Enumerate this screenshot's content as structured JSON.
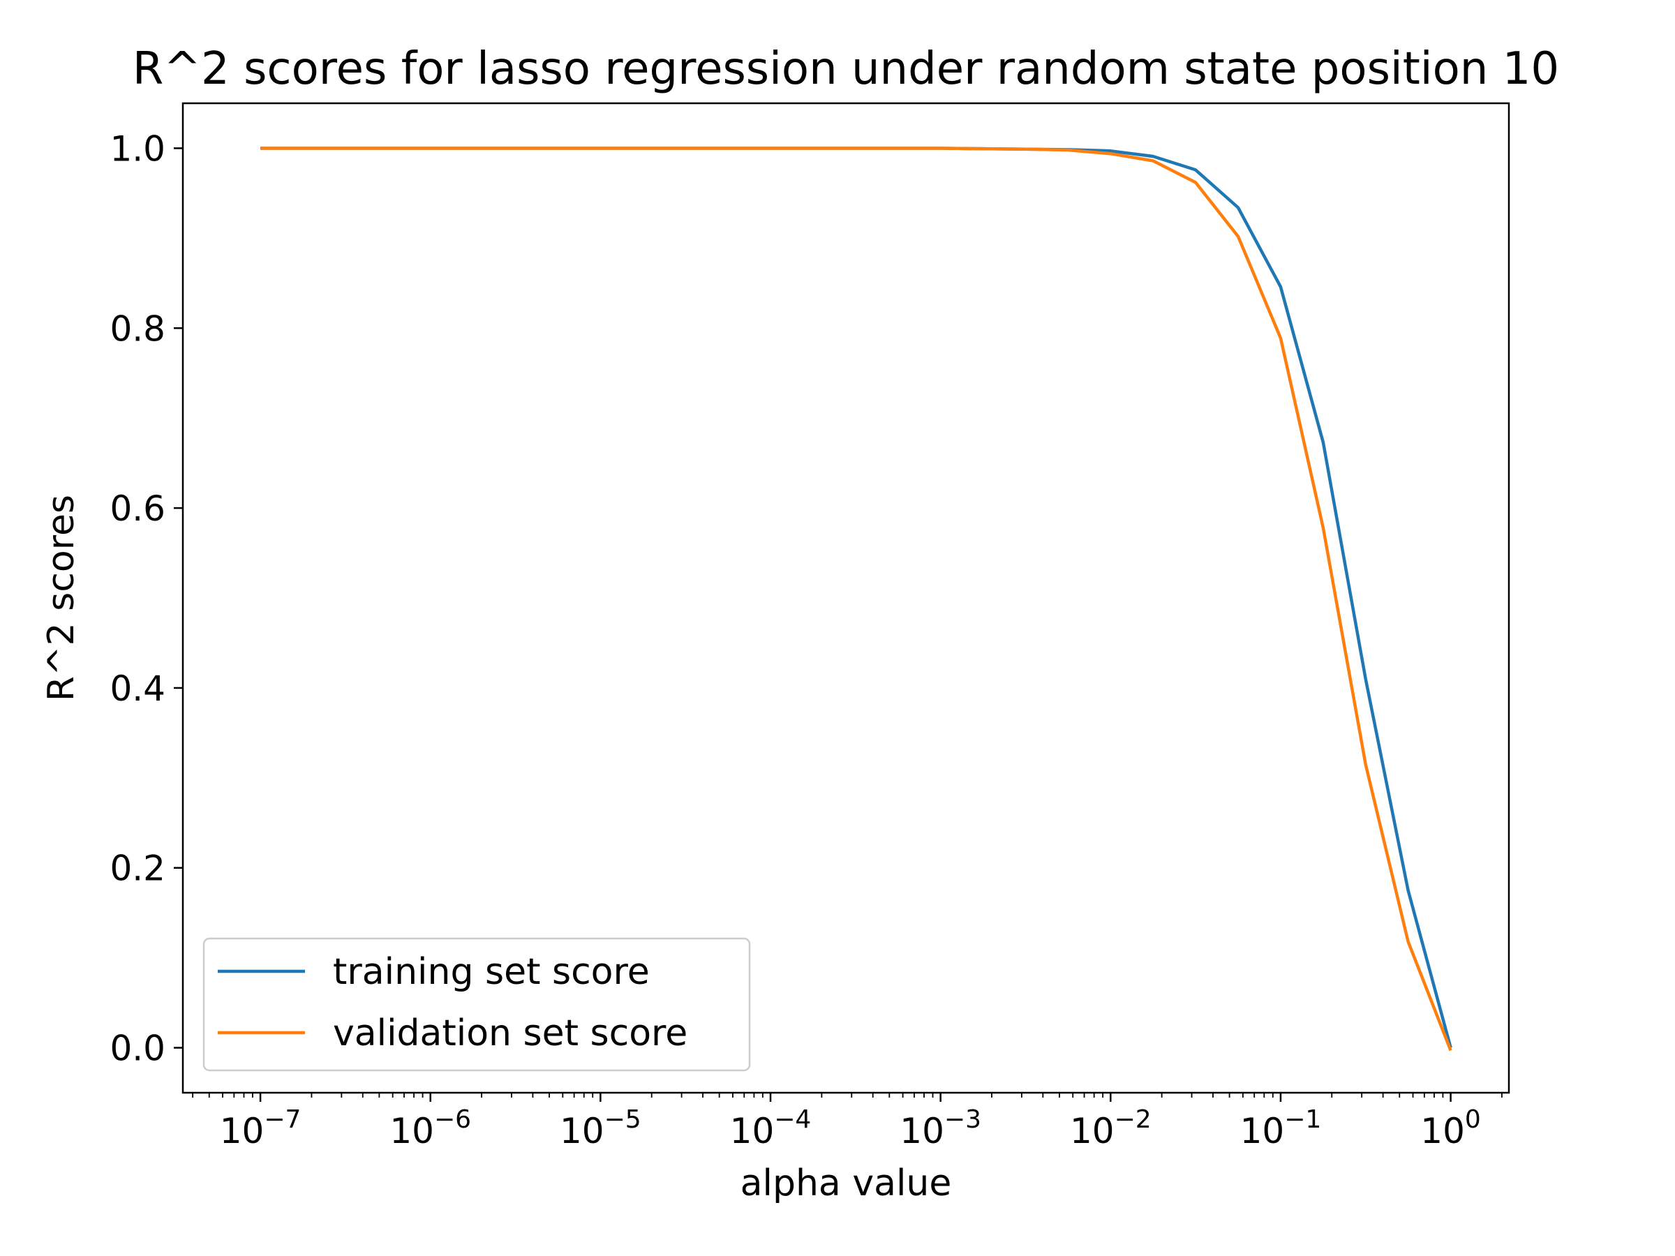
{
  "chart_data": {
    "type": "line",
    "title": "R^2 scores for lasso regression under random state position 10",
    "xlabel": "alpha value",
    "ylabel": "R^2 scores",
    "x_scale": "log",
    "xlim": [
      3.5e-08,
      2.2
    ],
    "ylim": [
      -0.05,
      1.05
    ],
    "x_ticks": [
      {
        "value": 1e-07,
        "base": "10",
        "exp": "−7"
      },
      {
        "value": 1e-06,
        "base": "10",
        "exp": "−6"
      },
      {
        "value": 1e-05,
        "base": "10",
        "exp": "−5"
      },
      {
        "value": 0.0001,
        "base": "10",
        "exp": "−4"
      },
      {
        "value": 0.001,
        "base": "10",
        "exp": "−3"
      },
      {
        "value": 0.01,
        "base": "10",
        "exp": "−2"
      },
      {
        "value": 0.1,
        "base": "10",
        "exp": "−1"
      },
      {
        "value": 1,
        "base": "10",
        "exp": "0"
      }
    ],
    "y_ticks": [
      {
        "value": 0.0,
        "label": "0.0"
      },
      {
        "value": 0.2,
        "label": "0.2"
      },
      {
        "value": 0.4,
        "label": "0.4"
      },
      {
        "value": 0.6,
        "label": "0.6"
      },
      {
        "value": 0.8,
        "label": "0.8"
      },
      {
        "value": 1.0,
        "label": "1.0"
      }
    ],
    "grid": false,
    "legend_position": "lower-left",
    "x": [
      1e-07,
      0.001,
      0.00316,
      0.00562,
      0.01,
      0.0178,
      0.0316,
      0.0562,
      0.1,
      0.178,
      0.316,
      0.562,
      1.0
    ],
    "series": [
      {
        "name": "training set score",
        "color": "#1f77b4",
        "values": [
          1.0,
          1.0,
          0.999,
          0.9985,
          0.997,
          0.991,
          0.976,
          0.934,
          0.846,
          0.673,
          0.41,
          0.175,
          0.0
        ]
      },
      {
        "name": "validation set score",
        "color": "#ff7f0e",
        "values": [
          1.0,
          1.0,
          0.999,
          0.998,
          0.994,
          0.986,
          0.962,
          0.902,
          0.789,
          0.578,
          0.315,
          0.118,
          -0.003
        ]
      }
    ]
  }
}
